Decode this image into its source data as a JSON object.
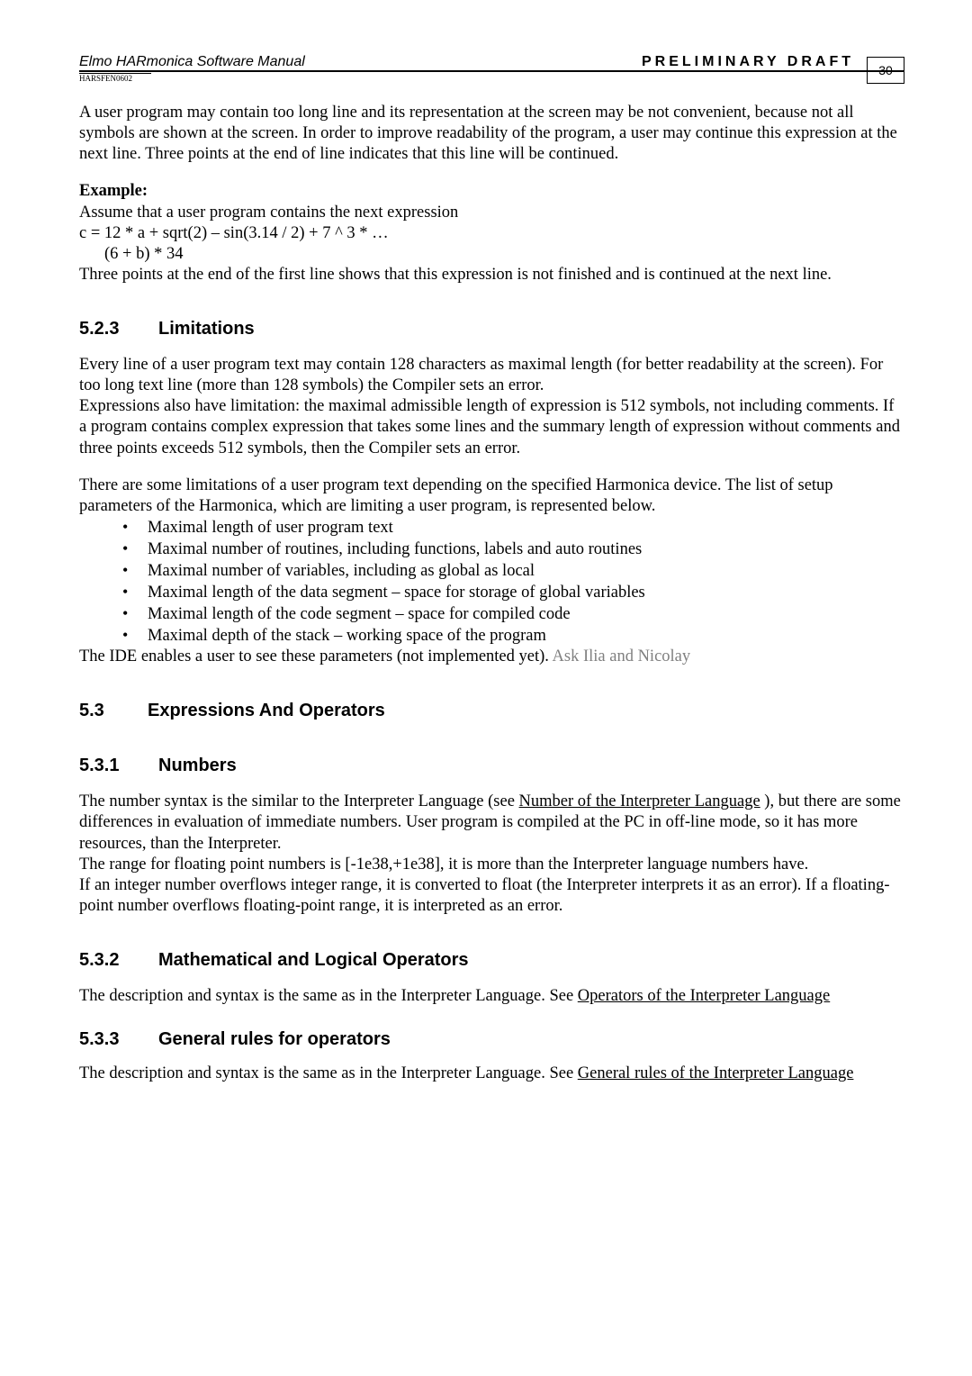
{
  "header": {
    "left": "Elmo HARmonica Software Manual",
    "right": "PRELIMINARY DRAFT",
    "sub": "HARSFEN0602",
    "page_num": "30"
  },
  "p1": "A user program may contain too long line and its representation at the screen may be not convenient, because not all symbols are shown at the screen. In order to improve readability of the program, a user may continue this expression at the next line. Three points at the end of line indicates that this line will be continued.",
  "example_label": "Example:",
  "example_line1": "Assume that a user program contains the next expression",
  "example_expr1": "c = 12 * a + sqrt(2) – sin(3.14 / 2) + 7 ^ 3 * …",
  "example_expr2": "(6 + b) * 34",
  "example_close": "Three points at the end of the first line shows that this expression is not finished and is continued at the next line.",
  "s523": {
    "num": "5.2.3",
    "title": "Limitations"
  },
  "s523_p1": "Every line of a user program text may contain 128 characters as maximal length (for better readability at the screen). For too long text line (more than 128 symbols) the Compiler sets an error.",
  "s523_p2": "Expressions also have limitation: the maximal admissible length of expression is 512 symbols, not including comments. If a program contains complex expression that takes some lines and the summary length of expression without comments and three points exceeds 512 symbols, then the Compiler sets an error.",
  "s523_p3": "There are some limitations of a user program text depending on the specified Harmonica device. The list of setup parameters of the Harmonica, which are limiting a user program, is represented below.",
  "bullets": [
    "Maximal length of user program text",
    "Maximal number of routines, including functions, labels and auto routines",
    "Maximal number of variables, including as global as local",
    "Maximal length of the data segment – space for storage of global variables",
    "Maximal length of the code segment – space for compiled code",
    "Maximal depth of the stack – working space of the program"
  ],
  "s523_close_a": "The IDE enables a user to see these parameters (not implemented yet). ",
  "s523_close_b": "Ask Ilia and Nicolay",
  "s53": {
    "num": "5.3",
    "title": "Expressions And Operators"
  },
  "s531": {
    "num": "5.3.1",
    "title": "Numbers"
  },
  "s531_p1a": "The number syntax is the similar to the Interpreter Language (see ",
  "s531_link1": "Number of the Interpreter Language",
  "s531_p1b": " ), but there are some differences in evaluation of immediate numbers. User program is compiled at the PC in off-line mode, so it has more resources, than the Interpreter.",
  "s531_p2": "The range for floating point numbers is [-1e38,+1e38], it is more than the Interpreter language numbers have.",
  "s531_p3": "If an integer number overflows integer range, it is converted to float (the Interpreter interprets it as an error). If a floating-point number overflows floating-point range, it is interpreted as an error.",
  "s532": {
    "num": "5.3.2",
    "title": "Mathematical and Logical Operators"
  },
  "s532_p1a": "The description and syntax is the same as in the Interpreter Language. See ",
  "s532_link": "Operators of the Interpreter Language",
  "s533": {
    "num": "5.3.3",
    "title": "General rules for operators"
  },
  "s533_p1a": "The description and syntax is the same as in the Interpreter Language. See ",
  "s533_link": "General rules of the Interpreter Language"
}
